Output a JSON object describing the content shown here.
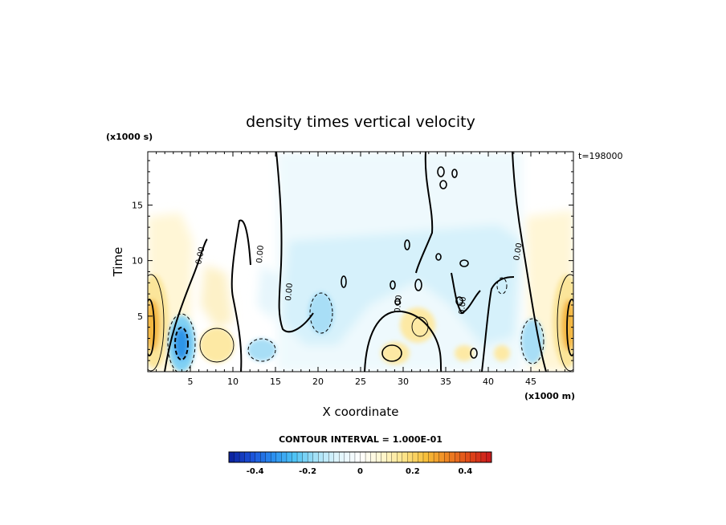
{
  "chart_data": {
    "type": "heatmap",
    "title": "density times vertical velocity",
    "xlabel": "X coordinate",
    "ylabel": "Time",
    "x_units": "(x1000 m)",
    "y_units": "(x1000 s)",
    "time_stamp": "t=198000",
    "xlim": [
      0,
      50
    ],
    "ylim": [
      0,
      19.8
    ],
    "x_ticks": [
      "5",
      "10",
      "15",
      "20",
      "25",
      "30",
      "35",
      "40",
      "45"
    ],
    "y_ticks": [
      "5",
      "10",
      "15"
    ],
    "contour_label": "0.00",
    "contour_interval": "CONTOUR INTERVAL = 1.000E-01",
    "colorbar": {
      "min": -0.5,
      "max": 0.5,
      "tick_labels": [
        "-0.4",
        "-0.2",
        "0",
        "0.2",
        "0.4"
      ],
      "tick_values": [
        -0.4,
        -0.2,
        0,
        0.2,
        0.4
      ],
      "colors": [
        "#0a1e9a",
        "#1a4fd8",
        "#2a8ef0",
        "#4ec3f5",
        "#a7e2f7",
        "#dff4fb",
        "#ffffff",
        "#fff7cf",
        "#fce48a",
        "#f7bf3a",
        "#ee8422",
        "#e04818",
        "#c8161c"
      ]
    },
    "features": [
      {
        "kind": "positive maximum",
        "x": 0.5,
        "time": 3.5,
        "value": 0.45
      },
      {
        "kind": "negative minimum",
        "x": 4,
        "time": 2.5,
        "value": -0.35
      },
      {
        "kind": "positive maximum",
        "x": 8,
        "time": 2.5,
        "value": 0.15
      },
      {
        "kind": "negative minimum",
        "x": 13.5,
        "time": 2,
        "value": -0.15
      },
      {
        "kind": "negative minimum",
        "x": 20,
        "time": 5,
        "value": -0.15
      },
      {
        "kind": "positive maximum",
        "x": 31,
        "time": 3,
        "value": 0.12
      },
      {
        "kind": "negative minimum",
        "x": 44,
        "time": 2.5,
        "value": -0.15
      },
      {
        "kind": "positive maximum",
        "x": 49.5,
        "time": 3.5,
        "value": 0.45
      }
    ]
  }
}
